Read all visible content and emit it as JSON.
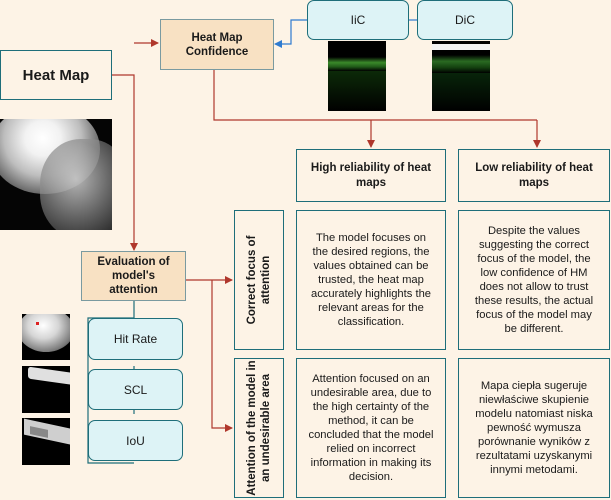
{
  "heat_map": "Heat Map",
  "heat_map_confidence": "Heat Map Confidence",
  "iic": "IiC",
  "dic": "DiC",
  "high_reliability": "High reliability of heat maps",
  "low_reliability": "Low reliability of heat maps",
  "evaluation": "Evaluation of model's attention",
  "metrics": {
    "hit_rate": "Hit Rate",
    "scl": "SCL",
    "iou": "IoU"
  },
  "rows": {
    "correct_focus": "Correct focus of attention",
    "undesirable_area": "Attention of the model in an undesirable area"
  },
  "cells": {
    "correct_high": "The model focuses on the desired regions, the values obtained can be trusted, the heat map accurately highlights the relevant areas for the classification.",
    "correct_low": "Despite the values suggesting the correct focus of the model, the low confidence of HM does not allow to trust these results, the actual focus of the model may be different.",
    "undesirable_high": "Attention focused on an undesirable area, due to the high certainty of the method, it can be concluded that the model relied on incorrect information in making its decision.",
    "undesirable_low": "Mapa ciepła sugeruje niewłaściwe skupienie modelu natomiast niska pewność wymusza porównanie wyników z rezultatami uzyskanymi innymi metodami."
  },
  "colors": {
    "arrow_red": "#b0372c",
    "arrow_blue": "#2f7bd0",
    "teal_border": "#1e6e7a",
    "peach_fill": "#f8e1c3",
    "background": "#fdf3e6"
  }
}
